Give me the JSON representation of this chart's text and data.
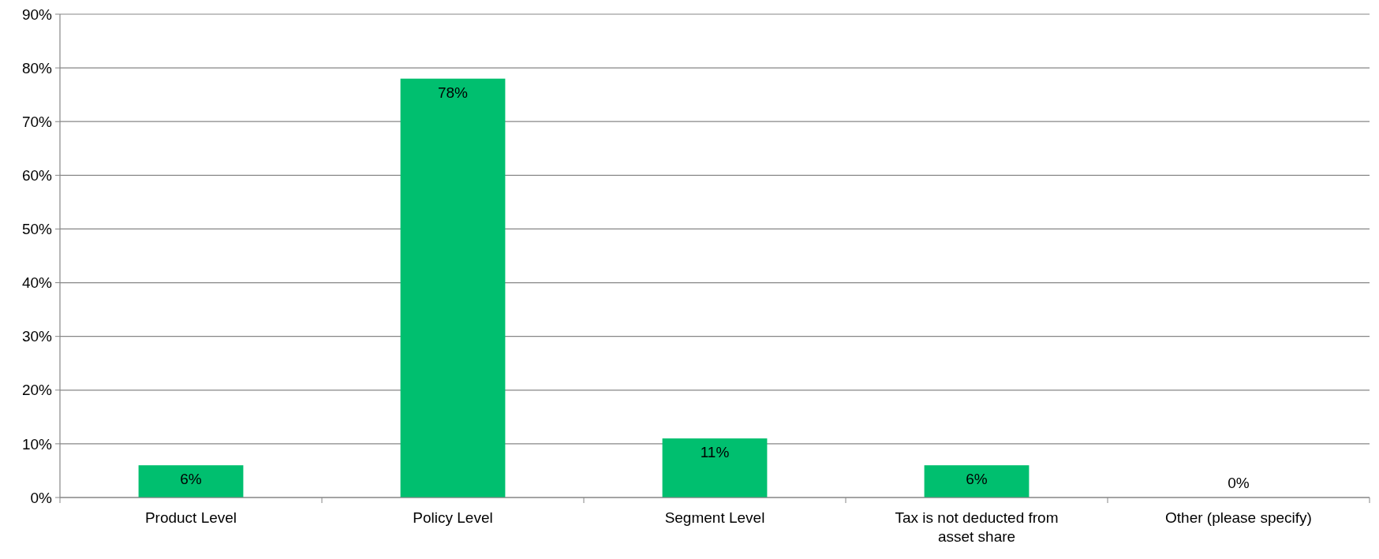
{
  "chart_data": {
    "type": "bar",
    "categories": [
      "Product Level",
      "Policy Level",
      "Segment Level",
      "Tax is not deducted from asset share",
      "Other (please specify)"
    ],
    "values": [
      6,
      78,
      11,
      6,
      0
    ],
    "color": "#00bf6f",
    "value_labels": [
      "6%",
      "78%",
      "11%",
      "6%",
      "0%"
    ],
    "ylim": [
      0,
      90
    ],
    "yticks": [
      {
        "value": 0,
        "label": "0%"
      },
      {
        "value": 10,
        "label": "10%"
      },
      {
        "value": 20,
        "label": "20%"
      },
      {
        "value": 30,
        "label": "30%"
      },
      {
        "value": 40,
        "label": "40%"
      },
      {
        "value": 50,
        "label": "50%"
      },
      {
        "value": 60,
        "label": "60%"
      },
      {
        "value": 70,
        "label": "70%"
      },
      {
        "value": 80,
        "label": "80%"
      },
      {
        "value": 90,
        "label": "90%"
      }
    ],
    "grid": "y"
  }
}
